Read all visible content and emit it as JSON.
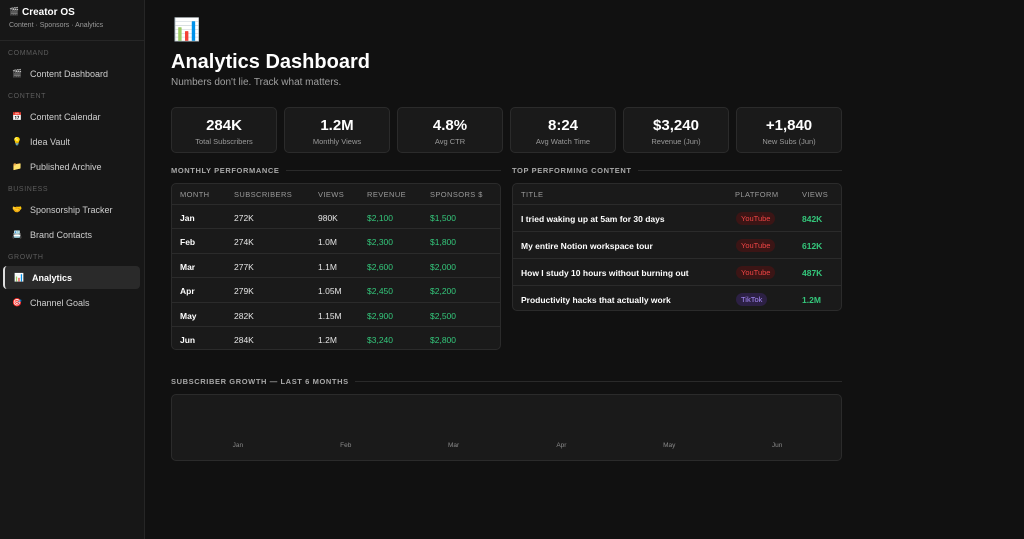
{
  "sidebar": {
    "icon": "🎬",
    "title": "Creator OS",
    "subtitle": "Content · Sponsors · Analytics",
    "sections": [
      {
        "label": "COMMAND",
        "items": [
          {
            "icon": "🎬",
            "label": "Content Dashboard"
          }
        ]
      },
      {
        "label": "CONTENT",
        "items": [
          {
            "icon": "📅",
            "label": "Content Calendar"
          },
          {
            "icon": "💡",
            "label": "Idea Vault"
          },
          {
            "icon": "📁",
            "label": "Published Archive"
          }
        ]
      },
      {
        "label": "BUSINESS",
        "items": [
          {
            "icon": "🤝",
            "label": "Sponsorship Tracker"
          },
          {
            "icon": "📇",
            "label": "Brand Contacts"
          }
        ]
      },
      {
        "label": "GROWTH",
        "items": [
          {
            "icon": "📊",
            "label": "Analytics",
            "active": true
          },
          {
            "icon": "🎯",
            "label": "Channel Goals"
          }
        ]
      }
    ]
  },
  "header": {
    "icon": "📊",
    "title": "Analytics Dashboard",
    "subtitle": "Numbers don't lie. Track what matters."
  },
  "stats": [
    {
      "value": "284K",
      "label": "Total Subscribers"
    },
    {
      "value": "1.2M",
      "label": "Monthly Views"
    },
    {
      "value": "4.8%",
      "label": "Avg CTR"
    },
    {
      "value": "8:24",
      "label": "Avg Watch Time"
    },
    {
      "value": "$3,240",
      "label": "Revenue (Jun)"
    },
    {
      "value": "+1,840",
      "label": "New Subs (Jun)"
    }
  ],
  "monthly": {
    "title": "MONTHLY PERFORMANCE",
    "columns": [
      "MONTH",
      "SUBSCRIBERS",
      "VIEWS",
      "REVENUE",
      "SPONSORS $"
    ],
    "rows": [
      [
        "Jan",
        "272K",
        "980K",
        "$2,100",
        "$1,500"
      ],
      [
        "Feb",
        "274K",
        "1.0M",
        "$2,300",
        "$1,800"
      ],
      [
        "Mar",
        "277K",
        "1.1M",
        "$2,600",
        "$2,000"
      ],
      [
        "Apr",
        "279K",
        "1.05M",
        "$2,450",
        "$2,200"
      ],
      [
        "May",
        "282K",
        "1.15M",
        "$2,900",
        "$2,500"
      ],
      [
        "Jun",
        "284K",
        "1.2M",
        "$3,240",
        "$2,800"
      ]
    ]
  },
  "top": {
    "title": "TOP PERFORMING CONTENT",
    "columns": [
      "TITLE",
      "PLATFORM",
      "VIEWS"
    ],
    "rows": [
      {
        "title": "I tried waking up at 5am for 30 days",
        "platform": "YouTube",
        "views": "842K"
      },
      {
        "title": "My entire Notion workspace tour",
        "platform": "YouTube",
        "views": "612K"
      },
      {
        "title": "How I study 10 hours without burning out",
        "platform": "YouTube",
        "views": "487K"
      },
      {
        "title": "Productivity hacks that actually work",
        "platform": "TikTok",
        "views": "1.2M"
      }
    ]
  },
  "growth": {
    "title": "SUBSCRIBER GROWTH — LAST 6 MONTHS",
    "months": [
      "Jan",
      "Feb",
      "Mar",
      "Apr",
      "May",
      "Jun"
    ]
  }
}
